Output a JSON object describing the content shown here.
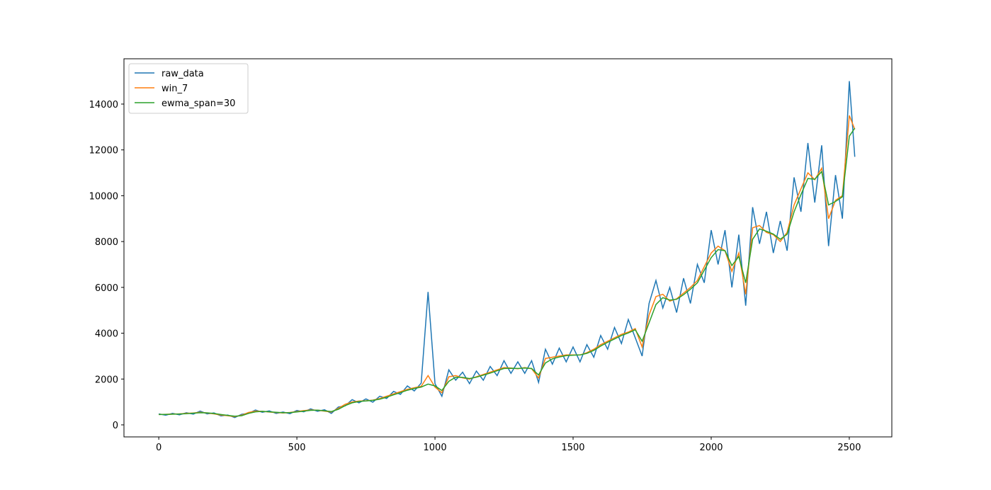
{
  "chart_data": {
    "type": "line",
    "x": [
      0,
      25,
      50,
      75,
      100,
      125,
      150,
      175,
      200,
      225,
      250,
      275,
      300,
      325,
      350,
      375,
      400,
      425,
      450,
      475,
      500,
      525,
      550,
      575,
      600,
      625,
      650,
      675,
      700,
      725,
      750,
      775,
      800,
      825,
      850,
      875,
      900,
      925,
      950,
      975,
      1000,
      1025,
      1050,
      1075,
      1100,
      1125,
      1150,
      1175,
      1200,
      1225,
      1250,
      1275,
      1300,
      1325,
      1350,
      1375,
      1400,
      1425,
      1450,
      1475,
      1500,
      1525,
      1550,
      1575,
      1600,
      1625,
      1650,
      1675,
      1700,
      1725,
      1750,
      1775,
      1800,
      1825,
      1850,
      1875,
      1900,
      1925,
      1950,
      1975,
      2000,
      2025,
      2050,
      2075,
      2100,
      2125,
      2150,
      2175,
      2200,
      2225,
      2250,
      2275,
      2300,
      2325,
      2350,
      2375,
      2400,
      2425,
      2450,
      2475,
      2500,
      2520
    ],
    "series": [
      {
        "name": "raw_data",
        "color": "#1f77b4",
        "values": [
          480,
          420,
          500,
          440,
          530,
          470,
          600,
          480,
          520,
          390,
          430,
          320,
          460,
          500,
          650,
          550,
          610,
          500,
          560,
          490,
          630,
          570,
          700,
          590,
          660,
          500,
          780,
          830,
          1100,
          960,
          1130,
          990,
          1250,
          1150,
          1460,
          1330,
          1700,
          1480,
          1820,
          5800,
          1800,
          1250,
          2400,
          1950,
          2300,
          1800,
          2350,
          1950,
          2550,
          2150,
          2800,
          2250,
          2750,
          2250,
          2800,
          1850,
          3300,
          2650,
          3350,
          2750,
          3400,
          2750,
          3500,
          2950,
          3900,
          3300,
          4250,
          3550,
          4600,
          3800,
          3000,
          5300,
          6300,
          5100,
          6000,
          4900,
          6400,
          5300,
          7000,
          6200,
          8500,
          7000,
          8500,
          6000,
          8300,
          5200,
          9500,
          7900,
          9300,
          7500,
          8900,
          7600,
          10800,
          9300,
          12300,
          9700,
          12200,
          7800,
          10900,
          9000,
          15000,
          11700
        ]
      },
      {
        "name": "win_7",
        "color": "#ff7f0e",
        "values": [
          450,
          460,
          470,
          480,
          500,
          520,
          550,
          520,
          480,
          430,
          400,
          360,
          420,
          540,
          600,
          590,
          560,
          540,
          520,
          540,
          580,
          620,
          650,
          640,
          600,
          560,
          720,
          900,
          1000,
          1040,
          1050,
          1080,
          1150,
          1250,
          1350,
          1450,
          1550,
          1620,
          1680,
          2150,
          1650,
          1400,
          2100,
          2150,
          2050,
          2000,
          2100,
          2200,
          2300,
          2400,
          2500,
          2480,
          2450,
          2500,
          2450,
          2050,
          2900,
          2950,
          3000,
          3050,
          3050,
          3050,
          3150,
          3300,
          3500,
          3650,
          3800,
          3950,
          4050,
          4200,
          3400,
          4800,
          5600,
          5700,
          5400,
          5500,
          5750,
          6000,
          6300,
          6900,
          7500,
          7800,
          7600,
          6700,
          7500,
          5700,
          8600,
          8700,
          8400,
          8300,
          8000,
          8400,
          9600,
          10300,
          11000,
          10700,
          11200,
          9000,
          9800,
          10000,
          13500,
          12900
        ]
      },
      {
        "name": "ewma_span=30",
        "color": "#2ca02c",
        "values": [
          450,
          455,
          465,
          475,
          490,
          510,
          530,
          525,
          495,
          450,
          415,
          380,
          400,
          500,
          570,
          590,
          570,
          550,
          530,
          535,
          565,
          600,
          635,
          640,
          615,
          580,
          680,
          840,
          960,
          1020,
          1045,
          1070,
          1120,
          1210,
          1310,
          1410,
          1510,
          1590,
          1650,
          1780,
          1700,
          1500,
          1900,
          2080,
          2070,
          2020,
          2080,
          2170,
          2260,
          2360,
          2460,
          2470,
          2460,
          2480,
          2460,
          2180,
          2700,
          2880,
          2960,
          3020,
          3040,
          3050,
          3120,
          3250,
          3440,
          3600,
          3750,
          3900,
          4010,
          4150,
          3650,
          4450,
          5250,
          5550,
          5450,
          5480,
          5680,
          5920,
          6200,
          6750,
          7300,
          7650,
          7600,
          6950,
          7350,
          6200,
          8100,
          8550,
          8450,
          8330,
          8100,
          8320,
          9300,
          10050,
          10750,
          10720,
          11050,
          9600,
          9750,
          9950,
          12600,
          12950
        ]
      }
    ],
    "xlim": [
      -126,
      2654
    ],
    "ylim": [
      -525,
      15977
    ],
    "xticks": [
      0,
      500,
      1000,
      1500,
      2000,
      2500
    ],
    "yticks": [
      0,
      2000,
      4000,
      6000,
      8000,
      10000,
      12000,
      14000
    ],
    "legend": "upper left"
  }
}
